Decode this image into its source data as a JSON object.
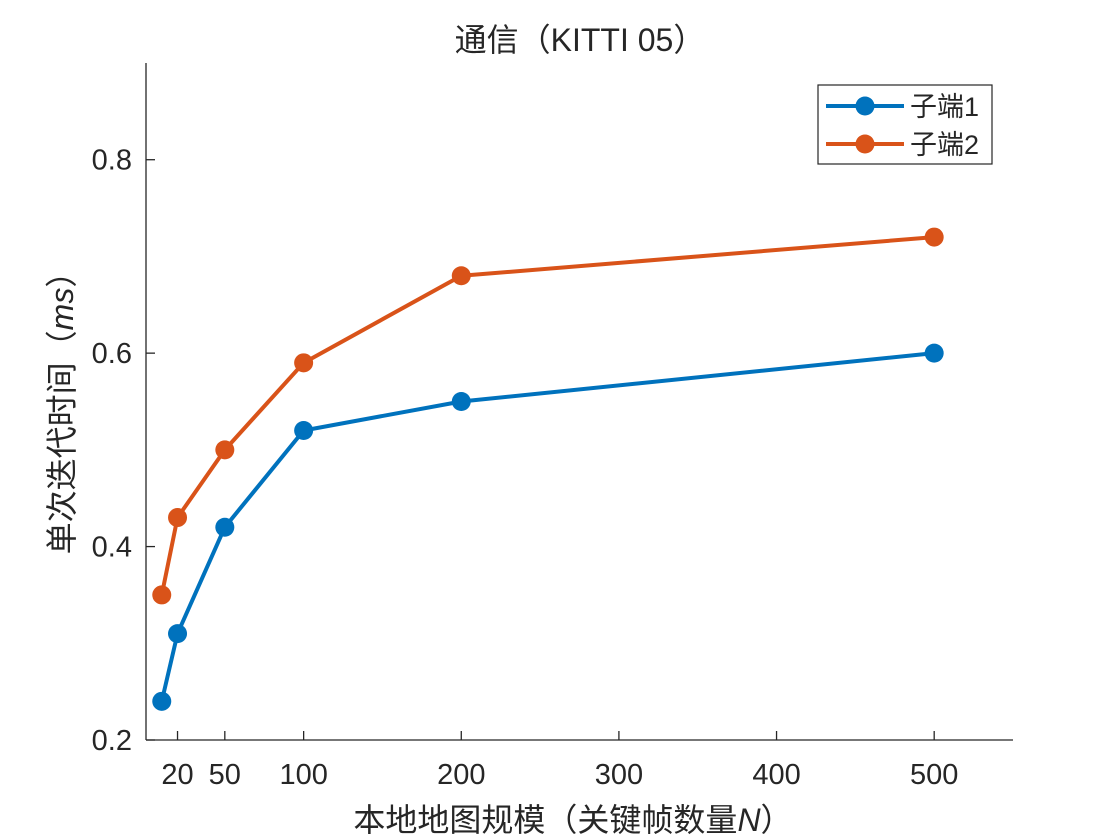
{
  "chart_data": {
    "type": "line",
    "title": "通信（KITTI 05）",
    "xlabel_main": "本地地图规模（关键帧数量",
    "xlabel_var": "N",
    "xlabel_close": "）",
    "ylabel_main": "单次迭代时间（",
    "ylabel_var": "ms",
    "ylabel_close": "）",
    "x_ticks": [
      20,
      50,
      100,
      200,
      300,
      400,
      500
    ],
    "x_tick_labels": [
      "20",
      "50",
      "100",
      "200",
      "300",
      "400",
      "500"
    ],
    "y_ticks": [
      0.2,
      0.4,
      0.6,
      0.8
    ],
    "y_tick_labels": [
      "0.2",
      "0.4",
      "0.6",
      "0.8"
    ],
    "xlim": [
      0,
      550
    ],
    "ylim": [
      0.2,
      0.9
    ],
    "grid": false,
    "legend_position": "top-right",
    "series": [
      {
        "name": "子端1",
        "color": "#0072BD",
        "x": [
          10,
          20,
          50,
          100,
          200,
          500
        ],
        "y": [
          0.24,
          0.31,
          0.42,
          0.52,
          0.55,
          0.6
        ]
      },
      {
        "name": "子端2",
        "color": "#D95319",
        "x": [
          10,
          20,
          50,
          100,
          200,
          500
        ],
        "y": [
          0.35,
          0.43,
          0.5,
          0.59,
          0.68,
          0.72
        ]
      }
    ]
  }
}
